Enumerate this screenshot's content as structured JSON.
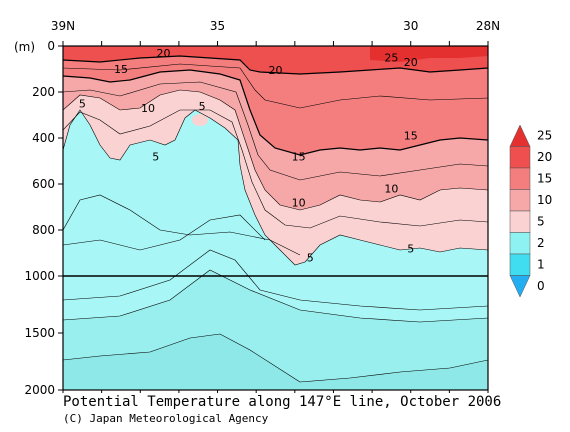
{
  "chart_data": {
    "type": "heatmap",
    "title": "Potential Temperature along 147°E line, October 2006",
    "credit": "(C) Japan Meteorological Agency",
    "x_ticks": [
      "39N",
      "35",
      "30",
      "28N"
    ],
    "x_tick_values": [
      39,
      35,
      30,
      28
    ],
    "xlim": [
      39,
      28
    ],
    "y_unit": "(m)",
    "y_ticks_upper": [
      0,
      200,
      400,
      600,
      800,
      1000
    ],
    "y_ticks_lower": [
      1500,
      2000
    ],
    "ylim": [
      0,
      2000
    ],
    "legend": {
      "labels": [
        "25",
        "20",
        "15",
        "10",
        "5",
        "2",
        "1",
        "0"
      ],
      "colors": [
        "#e53030",
        "#ef4f4f",
        "#f47e7e",
        "#f6a7a7",
        "#fbd2d2",
        "#8ff2f2",
        "#40ddf0",
        "#22aef0"
      ]
    },
    "contour_labels": [
      {
        "text": "20",
        "lat": 36.4,
        "depth": 30
      },
      {
        "text": "25",
        "lat": 30.5,
        "depth": 50
      },
      {
        "text": "20",
        "lat": 30.0,
        "depth": 70
      },
      {
        "text": "15",
        "lat": 37.5,
        "depth": 100
      },
      {
        "text": "20",
        "lat": 33.5,
        "depth": 105
      },
      {
        "text": "5",
        "lat": 38.5,
        "depth": 250
      },
      {
        "text": "10",
        "lat": 36.8,
        "depth": 270
      },
      {
        "text": "5",
        "lat": 35.4,
        "depth": 260
      },
      {
        "text": "15",
        "lat": 30.0,
        "depth": 390
      },
      {
        "text": "5",
        "lat": 36.6,
        "depth": 480
      },
      {
        "text": "15",
        "lat": 32.9,
        "depth": 480
      },
      {
        "text": "10",
        "lat": 30.5,
        "depth": 620
      },
      {
        "text": "10",
        "lat": 32.9,
        "depth": 680
      },
      {
        "text": "5",
        "lat": 30.0,
        "depth": 880
      },
      {
        "text": "5",
        "lat": 32.6,
        "depth": 920
      }
    ]
  }
}
